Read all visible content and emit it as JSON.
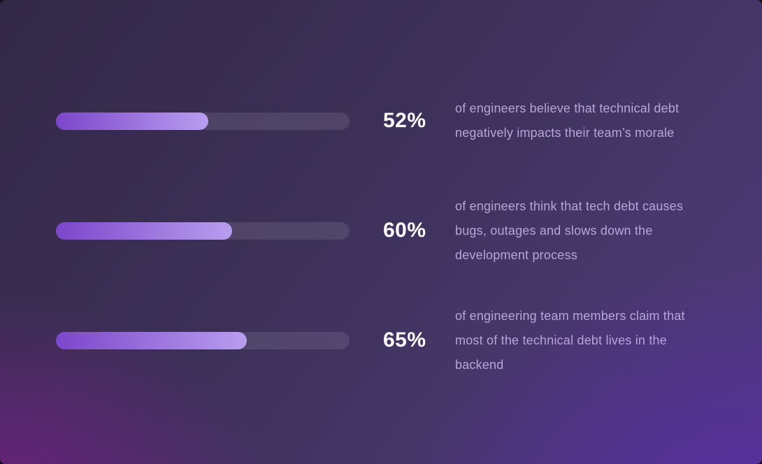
{
  "chart_data": {
    "type": "bar",
    "orientation": "horizontal",
    "categories": [
      "of engineers believe that technical debt negatively impacts their team’s morale",
      "of engineers think that tech debt causes bugs, outages and slows down the development process",
      "of engineering team members claim that most of the technical debt lives in the backend"
    ],
    "values": [
      52,
      60,
      65
    ],
    "value_labels": [
      "52%",
      "60%",
      "65%"
    ],
    "xlim": [
      0,
      100
    ],
    "title": "",
    "xlabel": "",
    "ylabel": "",
    "grid": false,
    "legend": false
  },
  "rows": [
    {
      "percent": 52,
      "percent_label": "52%",
      "lines": [
        "of engineers believe that technical debt",
        "negatively impacts their team’s morale"
      ]
    },
    {
      "percent": 60,
      "percent_label": "60%",
      "lines": [
        "of engineers think that tech debt causes",
        "bugs, outages and slows down the",
        "development process"
      ]
    },
    {
      "percent": 65,
      "percent_label": "65%",
      "lines": [
        "of engineering team members claim that",
        "most of the technical debt lives in the",
        "backend"
      ]
    }
  ],
  "colors": {
    "bar_fill_gradient_start": "#7c46cb",
    "bar_fill_gradient_end": "#b89eef",
    "bar_track": "rgba(255,255,255,0.10)",
    "percent_text": "#fdfcfe",
    "description_text": "#b7a5d9",
    "background_top_left": "#342a47",
    "background_top_right": "#4b3d73",
    "background_bottom_left": "#6c2384",
    "background_bottom_right": "#5930a0"
  }
}
